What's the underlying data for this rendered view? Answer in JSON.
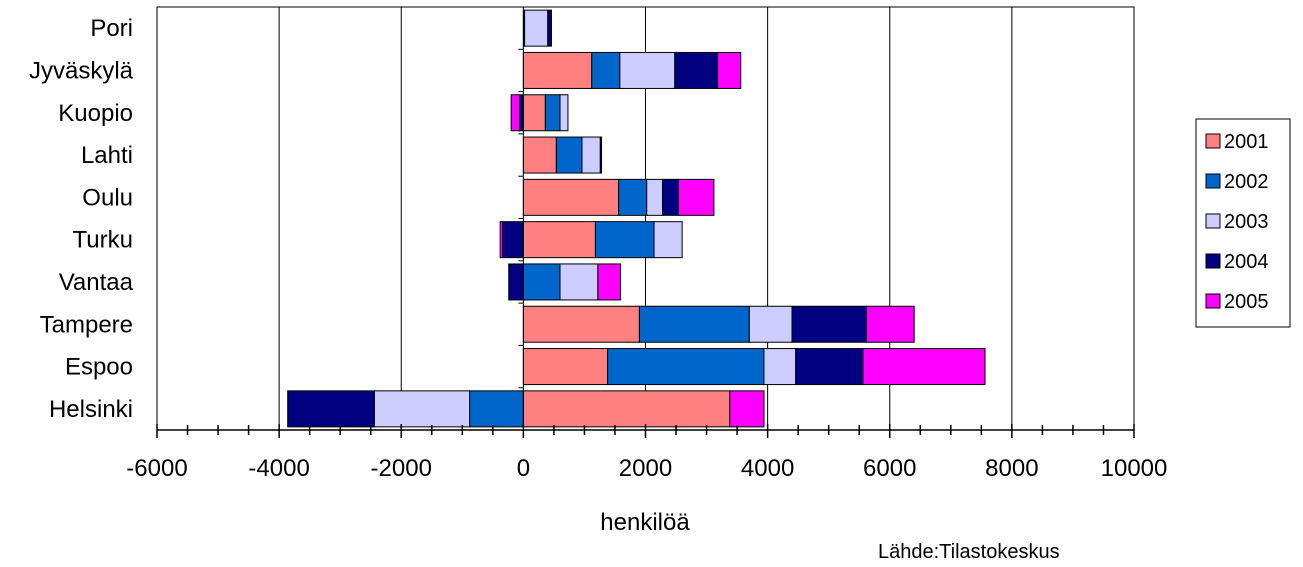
{
  "chart_data": {
    "type": "bar",
    "orientation": "horizontal",
    "stacked": true,
    "categories": [
      "Pori",
      "Jyväskylä",
      "Kuopio",
      "Lahti",
      "Oulu",
      "Turku",
      "Vantaa",
      "Tampere",
      "Espoo",
      "Helsinki"
    ],
    "series": [
      {
        "name": "2001",
        "color": "#ff8080",
        "values": [
          0,
          1120,
          360,
          540,
          1560,
          1180,
          0,
          1900,
          1380,
          3380
        ]
      },
      {
        "name": "2002",
        "color": "#0066cc",
        "values": [
          20,
          460,
          240,
          420,
          460,
          960,
          600,
          1800,
          2560,
          -880
        ]
      },
      {
        "name": "2003",
        "color": "#ccccff",
        "values": [
          380,
          900,
          130,
          300,
          260,
          460,
          620,
          700,
          520,
          -1560
        ]
      },
      {
        "name": "2004",
        "color": "#000080",
        "values": [
          60,
          700,
          -60,
          20,
          260,
          -340,
          -240,
          1220,
          1100,
          -1420
        ]
      },
      {
        "name": "2005",
        "color": "#ff00ff",
        "values": [
          0,
          380,
          -140,
          0,
          580,
          -40,
          370,
          780,
          2000,
          560
        ]
      }
    ],
    "xlabel": "henkilöä",
    "ylabel": "",
    "xlim": [
      -6000,
      10000
    ],
    "xticks": [
      -6000,
      -4000,
      -2000,
      0,
      2000,
      4000,
      6000,
      8000,
      10000
    ],
    "xtick_labels": [
      "-6000",
      "-4000",
      "-2000",
      "0",
      "2000",
      "4000",
      "6000",
      "8000",
      "10000"
    ],
    "grid": "vertical",
    "legend": "right",
    "source": "Lähde:Tilastokeskus"
  }
}
